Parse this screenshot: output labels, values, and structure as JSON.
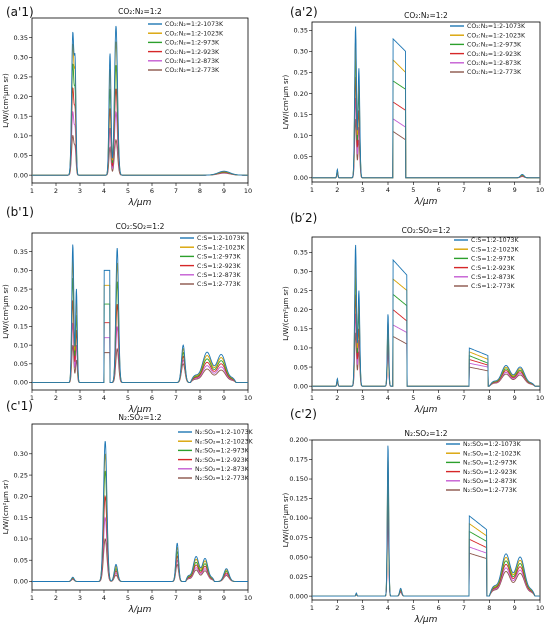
{
  "colors": [
    "#1f77b4",
    "#d8a200",
    "#2ca02c",
    "#d62728",
    "#c45cd3",
    "#8c564b"
  ],
  "chart_data": [
    {
      "type": "line",
      "label": "(a'1)",
      "title": "CO₂:N₂=1:2",
      "xlabel": "λ/μm",
      "ylabel": "L/W/(cm²μm sr)",
      "xlim": [
        1,
        10
      ],
      "ylim": [
        -0.02,
        0.4
      ],
      "xticks": [
        1,
        2,
        3,
        4,
        5,
        6,
        7,
        8,
        9,
        10
      ],
      "yticks": [
        0.0,
        0.05,
        0.1,
        0.15,
        0.2,
        0.25,
        0.3,
        0.35
      ],
      "legend": [
        "CO₂:N₂=1:2-1073K",
        "CO₂:N₂=1:2-1023K",
        "CO₂:N₂=1:2-973K",
        "CO₂:N₂=1:2-923K",
        "CO₂:N₂=1:2-873K",
        "CO₂:N₂=1:2-773K"
      ],
      "legend_position": "top-right",
      "features": [
        {
          "kind": "peak",
          "x": 2.7,
          "w": 0.07,
          "peaks": [
            0.36,
            0.33,
            0.28,
            0.22,
            0.16,
            0.1
          ]
        },
        {
          "kind": "peak",
          "x": 2.8,
          "w": 0.05,
          "peaks": [
            0.25,
            0.22,
            0.18,
            0.14,
            0.1,
            0.06
          ]
        },
        {
          "kind": "peak",
          "x": 4.25,
          "w": 0.06,
          "peaks": [
            0.31,
            0.27,
            0.22,
            0.17,
            0.12,
            0.07
          ]
        },
        {
          "kind": "peak",
          "x": 4.5,
          "w": 0.09,
          "peaks": [
            0.38,
            0.34,
            0.28,
            0.22,
            0.16,
            0.09
          ]
        },
        {
          "kind": "peak",
          "x": 9.0,
          "w": 0.35,
          "peaks": [
            0.01,
            0.009,
            0.008,
            0.007,
            0.006,
            0.005
          ]
        }
      ]
    },
    {
      "type": "line",
      "label": "(a'2)",
      "title": "CO₂:N₂=1:2",
      "xlabel": "λ/μm",
      "ylabel": "L/W/(cm²μm sr)",
      "xlim": [
        1,
        10
      ],
      "ylim": [
        -0.01,
        0.37
      ],
      "xticks": [
        1,
        2,
        3,
        4,
        5,
        6,
        7,
        8,
        9,
        10
      ],
      "yticks": [
        0.0,
        0.05,
        0.1,
        0.15,
        0.2,
        0.25,
        0.3,
        0.35
      ],
      "legend": [
        "CO₂:N₂=1:2-1073K",
        "CO₂:N₂=1:2-1023K",
        "CO₂:N₂=1:2-973K",
        "CO₂:N₂=1:2-923K",
        "CO₂:N₂=1:2-873K",
        "CO₂:N₂=1:2-773K"
      ],
      "legend_position": "top-right",
      "features": [
        {
          "kind": "peak",
          "x": 2.0,
          "w": 0.03,
          "peaks": [
            0.02,
            0.018,
            0.016,
            0.014,
            0.012,
            0.01
          ]
        },
        {
          "kind": "peak",
          "x": 2.72,
          "w": 0.05,
          "peaks": [
            0.36,
            0.33,
            0.29,
            0.24,
            0.19,
            0.14
          ]
        },
        {
          "kind": "peak",
          "x": 2.85,
          "w": 0.05,
          "peaks": [
            0.26,
            0.23,
            0.2,
            0.16,
            0.12,
            0.09
          ]
        },
        {
          "kind": "band",
          "x0": 4.2,
          "x1": 4.7,
          "top": [
            0.33,
            0.28,
            0.23,
            0.18,
            0.14,
            0.11
          ],
          "end": [
            0.3,
            0.25,
            0.21,
            0.16,
            0.12,
            0.09
          ]
        },
        {
          "kind": "peak",
          "x": 9.3,
          "w": 0.1,
          "peaks": [
            0.008,
            0.007,
            0.006,
            0.005,
            0.004,
            0.003
          ]
        }
      ]
    },
    {
      "type": "line",
      "label": "(b'1)",
      "title": "CO₂:SO₂=1:2",
      "xlabel": "λ/μm",
      "ylabel": "L/W/(cm²μm sr)",
      "xlim": [
        1,
        10
      ],
      "ylim": [
        -0.02,
        0.4
      ],
      "xticks": [
        1,
        2,
        3,
        4,
        5,
        6,
        7,
        8,
        9,
        10
      ],
      "yticks": [
        0.0,
        0.05,
        0.1,
        0.15,
        0.2,
        0.25,
        0.3,
        0.35
      ],
      "legend": [
        "C:S=1:2-1073K",
        "C:S=1:2-1023K",
        "C:S=1:2-973K",
        "C:S=1:2-923K",
        "C:S=1:2-873K",
        "C:S=1:2-773K"
      ],
      "legend_position": "top-right",
      "features": [
        {
          "kind": "peak",
          "x": 2.7,
          "w": 0.06,
          "peaks": [
            0.37,
            0.33,
            0.28,
            0.22,
            0.16,
            0.1
          ]
        },
        {
          "kind": "peak",
          "x": 2.85,
          "w": 0.05,
          "peaks": [
            0.25,
            0.22,
            0.18,
            0.14,
            0.1,
            0.06
          ]
        },
        {
          "kind": "band",
          "x0": 4.0,
          "x1": 4.25,
          "top": [
            0.3,
            0.26,
            0.21,
            0.16,
            0.12,
            0.08
          ],
          "end": [
            0.3,
            0.26,
            0.21,
            0.16,
            0.12,
            0.08
          ]
        },
        {
          "kind": "peak",
          "x": 4.55,
          "w": 0.08,
          "peaks": [
            0.36,
            0.32,
            0.27,
            0.21,
            0.15,
            0.09
          ]
        },
        {
          "kind": "peak",
          "x": 7.3,
          "w": 0.1,
          "peaks": [
            0.1,
            0.09,
            0.08,
            0.07,
            0.06,
            0.05
          ]
        },
        {
          "kind": "hump",
          "x0": 7.6,
          "x1": 9.5,
          "peaks": [
            0.09,
            0.08,
            0.07,
            0.06,
            0.05,
            0.04
          ]
        }
      ]
    },
    {
      "type": "line",
      "label": "(b′2)",
      "title": "CO₂:SO₂=1:2",
      "xlabel": "λ/μm",
      "ylabel": "L/W/(cm²μm sr)",
      "xlim": [
        1,
        10
      ],
      "ylim": [
        -0.01,
        0.39
      ],
      "xticks": [
        1,
        2,
        3,
        4,
        5,
        6,
        7,
        8,
        9,
        10
      ],
      "yticks": [
        0.0,
        0.05,
        0.1,
        0.15,
        0.2,
        0.25,
        0.3,
        0.35
      ],
      "legend": [
        "C:S=1:2-1073K",
        "C:S=1:2-1023K",
        "C:S=1:2-973K",
        "C:S=1:2-923K",
        "C:S=1:2-873K",
        "C:S=1:2-773K"
      ],
      "legend_position": "top-right",
      "features": [
        {
          "kind": "peak",
          "x": 2.0,
          "w": 0.03,
          "peaks": [
            0.02,
            0.018,
            0.016,
            0.014,
            0.012,
            0.01
          ]
        },
        {
          "kind": "peak",
          "x": 2.72,
          "w": 0.05,
          "peaks": [
            0.37,
            0.33,
            0.29,
            0.24,
            0.19,
            0.14
          ]
        },
        {
          "kind": "peak",
          "x": 2.85,
          "w": 0.05,
          "peaks": [
            0.25,
            0.22,
            0.19,
            0.15,
            0.12,
            0.09
          ]
        },
        {
          "kind": "peak",
          "x": 4.0,
          "w": 0.04,
          "peaks": [
            0.19,
            0.17,
            0.15,
            0.13,
            0.11,
            0.09
          ]
        },
        {
          "kind": "band",
          "x0": 4.2,
          "x1": 4.75,
          "top": [
            0.33,
            0.28,
            0.24,
            0.2,
            0.16,
            0.13
          ],
          "end": [
            0.29,
            0.25,
            0.21,
            0.17,
            0.14,
            0.11
          ]
        },
        {
          "kind": "band",
          "x0": 7.2,
          "x1": 7.95,
          "top": [
            0.1,
            0.09,
            0.08,
            0.07,
            0.06,
            0.05
          ],
          "end": [
            0.08,
            0.07,
            0.06,
            0.055,
            0.05,
            0.04
          ]
        },
        {
          "kind": "hump",
          "x0": 8.0,
          "x1": 9.8,
          "peaks": [
            0.06,
            0.055,
            0.05,
            0.045,
            0.04,
            0.035
          ]
        }
      ]
    },
    {
      "type": "line",
      "label": "(c'1)",
      "title": "N₂:SO₂=1:2",
      "xlabel": "λ/μm",
      "ylabel": "L/W/(cm²μm sr)",
      "xlim": [
        1,
        10
      ],
      "ylim": [
        -0.02,
        0.37
      ],
      "xticks": [
        1,
        2,
        3,
        4,
        5,
        6,
        7,
        8,
        9,
        10
      ],
      "yticks": [
        0.0,
        0.05,
        0.1,
        0.15,
        0.2,
        0.25,
        0.3
      ],
      "legend": [
        "N₂:SO₂=1:2-1073K",
        "N₂:SO₂=1:2-1023K",
        "N₂:SO₂=1:2-973K",
        "N₂:SO₂=1:2-923K",
        "N₂:SO₂=1:2-873K",
        "N₂:SO₂=1:2-773K"
      ],
      "legend_position": "top-right",
      "features": [
        {
          "kind": "peak",
          "x": 2.7,
          "w": 0.08,
          "peaks": [
            0.01,
            0.009,
            0.008,
            0.007,
            0.006,
            0.005
          ]
        },
        {
          "kind": "peak",
          "x": 4.05,
          "w": 0.1,
          "peaks": [
            0.33,
            0.3,
            0.26,
            0.2,
            0.15,
            0.1
          ]
        },
        {
          "kind": "peak",
          "x": 4.5,
          "w": 0.1,
          "peaks": [
            0.04,
            0.035,
            0.03,
            0.025,
            0.02,
            0.015
          ]
        },
        {
          "kind": "peak",
          "x": 7.05,
          "w": 0.08,
          "peaks": [
            0.09,
            0.08,
            0.07,
            0.06,
            0.05,
            0.04
          ]
        },
        {
          "kind": "hump",
          "x0": 7.4,
          "x1": 8.6,
          "peaks": [
            0.065,
            0.058,
            0.05,
            0.043,
            0.036,
            0.03
          ]
        },
        {
          "kind": "peak",
          "x": 9.1,
          "w": 0.15,
          "peaks": [
            0.03,
            0.027,
            0.024,
            0.02,
            0.017,
            0.014
          ]
        }
      ]
    },
    {
      "type": "line",
      "label": "(c'2)",
      "title": "N₂:SO₂=1:2",
      "xlabel": "λ/μm",
      "ylabel": "L/W/(cm²μm sr)",
      "xlim": [
        1,
        10
      ],
      "ylim": [
        -0.005,
        0.2
      ],
      "xticks": [
        1,
        2,
        3,
        4,
        5,
        6,
        7,
        8,
        9,
        10
      ],
      "yticks": [
        0.0,
        0.025,
        0.05,
        0.075,
        0.1,
        0.125,
        0.15,
        0.175,
        0.2
      ],
      "legend": [
        "N₂:SO₂=1:2-1073K",
        "N₂:SO₂=1:2-1023K",
        "N₂:SO₂=1:2-973K",
        "N₂:SO₂=1:2-923K",
        "N₂:SO₂=1:2-873K",
        "N₂:SO₂=1:2-773K"
      ],
      "legend_position": "top-right",
      "features": [
        {
          "kind": "peak",
          "x": 2.75,
          "w": 0.03,
          "peaks": [
            0.004,
            0.0035,
            0.003,
            0.0025,
            0.002,
            0.0015
          ]
        },
        {
          "kind": "peak",
          "x": 4.0,
          "w": 0.04,
          "peaks": [
            0.195,
            0.18,
            0.16,
            0.14,
            0.12,
            0.1
          ]
        },
        {
          "kind": "peak",
          "x": 4.5,
          "w": 0.06,
          "peaks": [
            0.01,
            0.009,
            0.008,
            0.007,
            0.006,
            0.005
          ]
        },
        {
          "kind": "band",
          "x0": 7.2,
          "x1": 7.9,
          "top": [
            0.103,
            0.093,
            0.083,
            0.073,
            0.063,
            0.055
          ],
          "end": [
            0.085,
            0.077,
            0.07,
            0.062,
            0.055,
            0.048
          ]
        },
        {
          "kind": "hump",
          "x0": 8.0,
          "x1": 9.8,
          "peaks": [
            0.06,
            0.055,
            0.05,
            0.045,
            0.04,
            0.035
          ]
        }
      ]
    }
  ]
}
